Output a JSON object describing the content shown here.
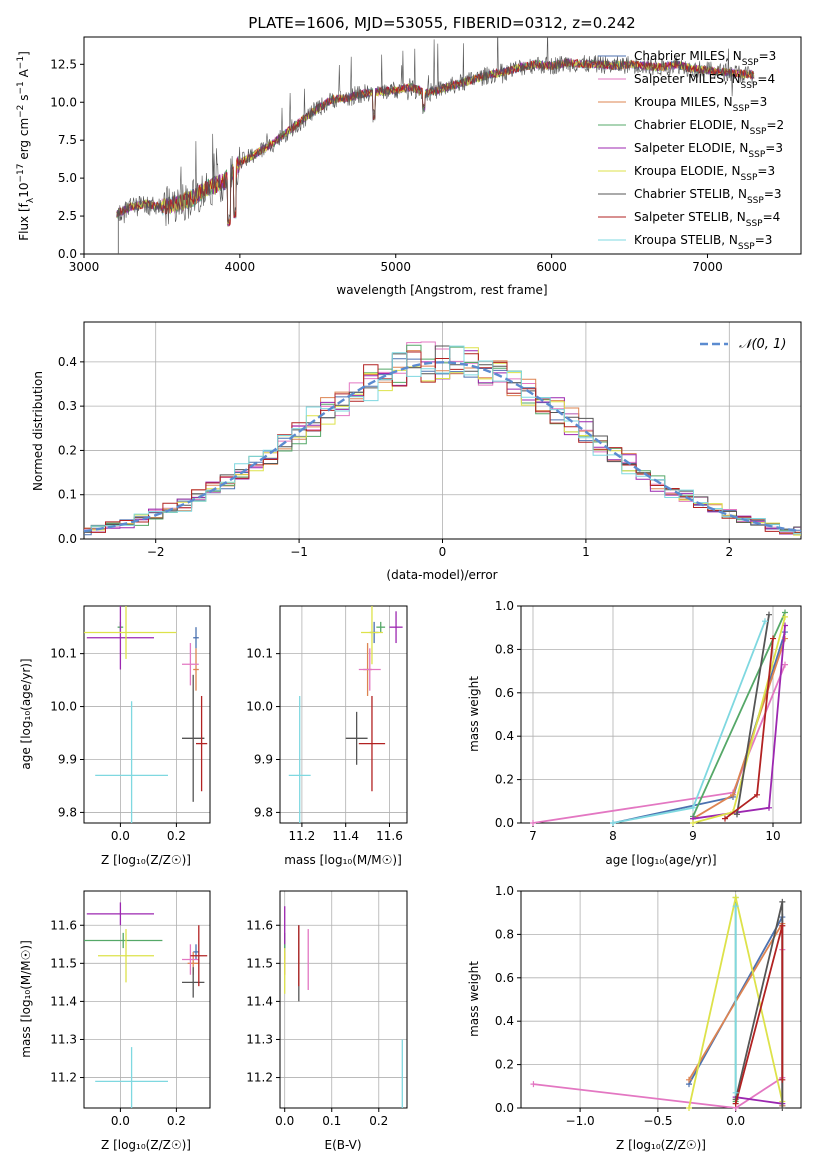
{
  "chart_data": [
    {
      "type": "line",
      "title": "PLATE=1606, MJD=53055, FIBERID=0312, z=0.242",
      "xlabel": "wavelength [Angstrom, rest frame]",
      "ylabel": "Flux [f_λ 10^-17 erg cm^-2 s^-1 A^-1]",
      "xlim": [
        3000,
        7600
      ],
      "ylim": [
        0,
        14.3
      ],
      "xticks": [
        "3000",
        "4000",
        "5000",
        "6000",
        "7000"
      ],
      "yticks": [
        "0.0",
        "2.5",
        "5.0",
        "7.5",
        "10.0",
        "12.5"
      ],
      "legend_position": "top-right",
      "series": [
        {
          "name": "Chabrier MILES, N_SSP=3",
          "color": "#4c72b0"
        },
        {
          "name": "Salpeter MILES, N_SSP=4",
          "color": "#e377c2"
        },
        {
          "name": "Kroupa MILES, N_SSP=3",
          "color": "#dd8452"
        },
        {
          "name": "Chabrier ELODIE, N_SSP=2",
          "color": "#55a868"
        },
        {
          "name": "Salpeter ELODIE, N_SSP=3",
          "color": "#9c27b0"
        },
        {
          "name": "Kroupa ELODIE, N_SSP=3",
          "color": "#dde24a"
        },
        {
          "name": "Chabrier STELIB, N_SSP=3",
          "color": "#555555"
        },
        {
          "name": "Salpeter STELIB, N_SSP=4",
          "color": "#b22222"
        },
        {
          "name": "Kroupa STELIB, N_SSP=3",
          "color": "#7fd8e0"
        }
      ],
      "x": [
        3200,
        3300,
        3400,
        3500,
        3600,
        3700,
        3800,
        3900,
        4000,
        4100,
        4200,
        4300,
        4400,
        4500,
        4600,
        4700,
        4800,
        4900,
        5000,
        5100,
        5200,
        5300,
        5400,
        5500,
        5600,
        5700,
        5800,
        5900,
        6000,
        6100,
        6200,
        6300,
        6400,
        6500,
        6600,
        6700,
        6800,
        6900,
        7000,
        7100,
        7200,
        7300
      ],
      "y": [
        2.6,
        3.1,
        3.3,
        3.1,
        3.3,
        3.7,
        4.4,
        4.8,
        6.0,
        6.6,
        7.2,
        8.0,
        8.8,
        9.6,
        10.2,
        10.3,
        10.6,
        10.7,
        10.8,
        11.0,
        10.6,
        10.9,
        11.2,
        11.5,
        11.8,
        12.0,
        12.3,
        12.5,
        12.4,
        12.6,
        12.5,
        12.5,
        12.4,
        12.5,
        12.4,
        12.3,
        12.5,
        12.2,
        12.1,
        12.0,
        11.9,
        11.8
      ]
    },
    {
      "type": "line",
      "xlabel": "(data-model)/error",
      "ylabel": "Normed distribution",
      "xlim": [
        -2.5,
        2.5
      ],
      "ylim": [
        0,
        0.49
      ],
      "xticks": [
        "−2",
        "−1",
        "0",
        "1",
        "2"
      ],
      "yticks": [
        "0.0",
        "0.1",
        "0.2",
        "0.3",
        "0.4"
      ],
      "legend": "N(0,1)",
      "legend_position": "top-right",
      "histogram": "9 step histograms of residuals, one per model, bin width 0.1, following the N(0,1) curve",
      "gaussian": "N(0,1) density, dashed"
    },
    {
      "type": "scatter",
      "xlabel": "Z [log10(Z/Z_sun)]",
      "ylabel": "age [log10(age/yr)]",
      "xlim": [
        -0.13,
        0.32
      ],
      "ylim": [
        9.78,
        10.19
      ],
      "xticks": [
        "0.0",
        "0.2"
      ],
      "yticks": [
        "9.8",
        "9.9",
        "10.0",
        "10.1"
      ],
      "points": [
        {
          "x": 0.27,
          "y": 10.13,
          "xerr": 0.01,
          "yerr": 0.02,
          "color": "#4c72b0"
        },
        {
          "x": 0.27,
          "y": 10.07,
          "xerr": 0.01,
          "yerr": 0.04,
          "color": "#dd8452"
        },
        {
          "x": 0.0,
          "y": 10.15,
          "xerr": 0.01,
          "yerr": 0.01,
          "color": "#55a868"
        },
        {
          "x": 0.25,
          "y": 10.08,
          "xerr": 0.03,
          "yerr": 0.04,
          "color": "#e377c2"
        },
        {
          "x": 0.0,
          "y": 10.13,
          "xerr": 0.12,
          "yerr": 0.06,
          "color": "#9c27b0"
        },
        {
          "x": 0.02,
          "y": 10.14,
          "xerr": 0.18,
          "yerr": 0.05,
          "color": "#dde24a"
        },
        {
          "x": 0.26,
          "y": 9.94,
          "xerr": 0.04,
          "yerr": 0.12,
          "color": "#555555"
        },
        {
          "x": 0.29,
          "y": 9.93,
          "xerr": 0.02,
          "yerr": 0.09,
          "color": "#b22222"
        },
        {
          "x": 0.04,
          "y": 9.87,
          "xerr": 0.13,
          "yerr": 0.14,
          "color": "#7fd8e0"
        }
      ]
    },
    {
      "type": "scatter",
      "xlabel": "mass [log10(M/M_sun)]",
      "ylim": [
        9.78,
        10.19
      ],
      "xlim": [
        11.1,
        11.68
      ],
      "xticks": [
        "11.2",
        "11.4",
        "11.6"
      ],
      "yticks": [
        "9.8",
        "9.9",
        "10.0",
        "10.1"
      ],
      "points": [
        {
          "x": 11.53,
          "y": 10.14,
          "xerr": 0.02,
          "yerr": 0.02,
          "color": "#4c72b0"
        },
        {
          "x": 11.5,
          "y": 10.07,
          "xerr": 0.02,
          "yerr": 0.05,
          "color": "#dd8452"
        },
        {
          "x": 11.56,
          "y": 10.15,
          "xerr": 0.02,
          "yerr": 0.01,
          "color": "#55a868"
        },
        {
          "x": 11.51,
          "y": 10.07,
          "xerr": 0.05,
          "yerr": 0.04,
          "color": "#e377c2"
        },
        {
          "x": 11.63,
          "y": 10.15,
          "xerr": 0.03,
          "yerr": 0.03,
          "color": "#9c27b0"
        },
        {
          "x": 11.52,
          "y": 10.14,
          "xerr": 0.05,
          "yerr": 0.06,
          "color": "#dde24a"
        },
        {
          "x": 11.45,
          "y": 9.94,
          "xerr": 0.05,
          "yerr": 0.05,
          "color": "#555555"
        },
        {
          "x": 11.52,
          "y": 9.93,
          "xerr": 0.06,
          "yerr": 0.09,
          "color": "#b22222"
        },
        {
          "x": 11.19,
          "y": 9.87,
          "xerr": 0.05,
          "yerr": 0.15,
          "color": "#7fd8e0"
        }
      ]
    },
    {
      "type": "line",
      "xlabel": "age [log10(age/yr)]",
      "ylabel": "mass weight",
      "xlim": [
        6.85,
        10.35
      ],
      "ylim": [
        0,
        1
      ],
      "xticks": [
        "7",
        "8",
        "9",
        "10"
      ],
      "yticks": [
        "0.0",
        "0.2",
        "0.4",
        "0.6",
        "0.8",
        "1.0"
      ],
      "series": [
        {
          "color": "#4c72b0",
          "x": [
            8.0,
            9.5,
            10.15
          ],
          "y": [
            0.0,
            0.12,
            0.88
          ]
        },
        {
          "color": "#e377c2",
          "x": [
            7.0,
            9.5,
            10.15
          ],
          "y": [
            0.0,
            0.14,
            0.73
          ]
        },
        {
          "color": "#dd8452",
          "x": [
            9.0,
            9.5,
            10.15
          ],
          "y": [
            0.02,
            0.13,
            0.85
          ]
        },
        {
          "color": "#55a868",
          "x": [
            9.0,
            10.15
          ],
          "y": [
            0.03,
            0.97
          ]
        },
        {
          "color": "#9c27b0",
          "x": [
            9.0,
            9.95,
            10.15
          ],
          "y": [
            0.02,
            0.07,
            0.91
          ]
        },
        {
          "color": "#dde24a",
          "x": [
            9.0,
            9.5,
            10.15
          ],
          "y": [
            0.0,
            0.05,
            0.95
          ]
        },
        {
          "color": "#555555",
          "x": [
            9.55,
            9.95
          ],
          "y": [
            0.04,
            0.96
          ]
        },
        {
          "color": "#b22222",
          "x": [
            9.4,
            9.8,
            10.0
          ],
          "y": [
            0.02,
            0.13,
            0.85
          ]
        },
        {
          "color": "#7fd8e0",
          "x": [
            8.0,
            9.0,
            9.9
          ],
          "y": [
            0.0,
            0.07,
            0.93
          ]
        }
      ]
    },
    {
      "type": "scatter",
      "xlabel": "Z [log10(Z/Z_sun)]",
      "ylabel": "mass [log10(M/M_sun)]",
      "xlim": [
        -0.13,
        0.32
      ],
      "ylim": [
        11.12,
        11.69
      ],
      "xticks": [
        "0.0",
        "0.2"
      ],
      "yticks": [
        "11.2",
        "11.3",
        "11.4",
        "11.5",
        "11.6"
      ],
      "points": [
        {
          "x": 0.27,
          "y": 11.53,
          "xerr": 0.01,
          "yerr": 0.02,
          "color": "#4c72b0"
        },
        {
          "x": 0.26,
          "y": 11.5,
          "xerr": 0.02,
          "yerr": 0.03,
          "color": "#dd8452"
        },
        {
          "x": 0.01,
          "y": 11.56,
          "xerr": 0.14,
          "yerr": 0.02,
          "color": "#55a868"
        },
        {
          "x": 0.25,
          "y": 11.51,
          "xerr": 0.03,
          "yerr": 0.04,
          "color": "#e377c2"
        },
        {
          "x": 0.0,
          "y": 11.63,
          "xerr": 0.12,
          "yerr": 0.03,
          "color": "#9c27b0"
        },
        {
          "x": 0.02,
          "y": 11.52,
          "xerr": 0.1,
          "yerr": 0.07,
          "color": "#dde24a"
        },
        {
          "x": 0.26,
          "y": 11.45,
          "xerr": 0.04,
          "yerr": 0.04,
          "color": "#555555"
        },
        {
          "x": 0.28,
          "y": 11.52,
          "xerr": 0.03,
          "yerr": 0.08,
          "color": "#b22222"
        },
        {
          "x": 0.04,
          "y": 11.19,
          "xerr": 0.13,
          "yerr": 0.09,
          "color": "#7fd8e0"
        }
      ]
    },
    {
      "type": "scatter",
      "xlabel": "E(B-V)",
      "xlim": [
        -0.01,
        0.26
      ],
      "ylim": [
        11.12,
        11.69
      ],
      "xticks": [
        "0.0",
        "0.1",
        "0.2"
      ],
      "yticks": [
        "11.2",
        "11.3",
        "11.4",
        "11.5",
        "11.6"
      ],
      "points": [
        {
          "x": 0.0,
          "y": 11.53,
          "xerr": 0.0,
          "yerr": 0.02,
          "color": "#4c72b0"
        },
        {
          "x": 0.0,
          "y": 11.5,
          "xerr": 0.0,
          "yerr": 0.03,
          "color": "#dd8452"
        },
        {
          "x": 0.0,
          "y": 11.56,
          "xerr": 0.0,
          "yerr": 0.02,
          "color": "#55a868"
        },
        {
          "x": 0.05,
          "y": 11.51,
          "xerr": 0.0,
          "yerr": 0.08,
          "color": "#e377c2"
        },
        {
          "x": 0.0,
          "y": 11.6,
          "xerr": 0.0,
          "yerr": 0.05,
          "color": "#9c27b0"
        },
        {
          "x": 0.0,
          "y": 11.48,
          "xerr": 0.0,
          "yerr": 0.06,
          "color": "#dde24a"
        },
        {
          "x": 0.03,
          "y": 11.5,
          "xerr": 0.0,
          "yerr": 0.1,
          "color": "#555555"
        },
        {
          "x": 0.03,
          "y": 11.52,
          "xerr": 0.0,
          "yerr": 0.08,
          "color": "#b22222"
        },
        {
          "x": 0.25,
          "y": 11.21,
          "xerr": 0.0,
          "yerr": 0.09,
          "color": "#7fd8e0"
        }
      ]
    },
    {
      "type": "line",
      "xlabel": "Z [log10(Z/Z_sun)]",
      "ylabel": "mass weight",
      "xlim": [
        -1.38,
        0.42
      ],
      "ylim": [
        0,
        1
      ],
      "xticks": [
        "−1.0",
        "−0.5",
        "0.0"
      ],
      "yticks": [
        "0.0",
        "0.2",
        "0.4",
        "0.6",
        "0.8",
        "1.0"
      ],
      "series": [
        {
          "color": "#4c72b0",
          "x": [
            -0.3,
            0.3,
            0.3
          ],
          "y": [
            0.11,
            0.88,
            0.01
          ]
        },
        {
          "color": "#e377c2",
          "x": [
            -1.3,
            0.0,
            0.3,
            0.3
          ],
          "y": [
            0.11,
            0.0,
            0.14,
            0.73
          ]
        },
        {
          "color": "#dd8452",
          "x": [
            -0.3,
            0.3,
            0.3
          ],
          "y": [
            0.13,
            0.85,
            0.01
          ]
        },
        {
          "color": "#55a868",
          "x": [
            0.0,
            0.0
          ],
          "y": [
            0.97,
            0.03
          ]
        },
        {
          "color": "#9c27b0",
          "x": [
            0.0,
            0.3
          ],
          "y": [
            0.05,
            0.02
          ]
        },
        {
          "color": "#dde24a",
          "x": [
            -0.3,
            0.0,
            0.3
          ],
          "y": [
            0.0,
            0.97,
            0.03
          ]
        },
        {
          "color": "#555555",
          "x": [
            0.0,
            0.3,
            0.3
          ],
          "y": [
            0.04,
            0.95,
            0.0
          ]
        },
        {
          "color": "#b22222",
          "x": [
            0.0,
            0.3,
            0.3
          ],
          "y": [
            0.02,
            0.84,
            0.13
          ]
        },
        {
          "color": "#7fd8e0",
          "x": [
            0.0,
            0.0
          ],
          "y": [
            0.93,
            0.07
          ]
        }
      ]
    }
  ],
  "text": {
    "title": "PLATE=1606, MJD=53055, FIBERID=0312, z=0.242",
    "legend_gauss": "𝒩(0, 1)"
  }
}
